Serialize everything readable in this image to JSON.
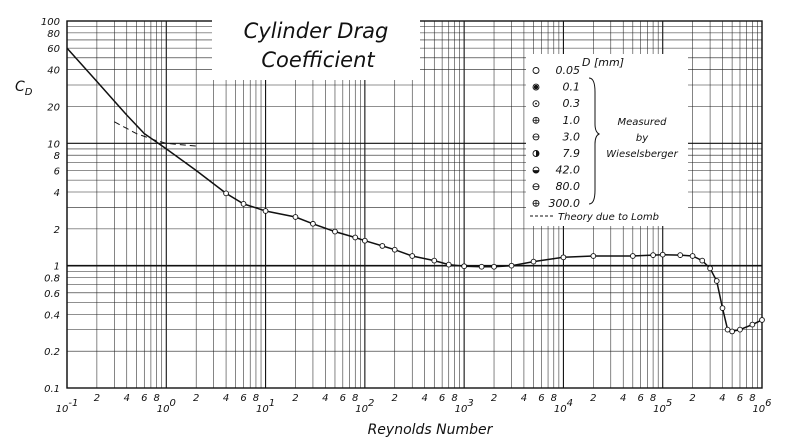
{
  "chart_data": {
    "type": "scatter",
    "title": "Cylinder Drag",
    "subtitle": "Coefficient",
    "xlabel": "Reynolds Number",
    "ylabel": "C",
    "ylabel_sub": "D",
    "x_scale": "log",
    "y_scale": "log",
    "xlim": [
      0.1,
      1000000
    ],
    "ylim": [
      0.1,
      100
    ],
    "grid": true,
    "legend_placement": "top-right",
    "x_major_ticks": [
      {
        "base": "10",
        "exp": "-1",
        "value": 0.1
      },
      {
        "base": "10",
        "exp": "0",
        "value": 1
      },
      {
        "base": "10",
        "exp": "1",
        "value": 10
      },
      {
        "base": "10",
        "exp": "2",
        "value": 100
      },
      {
        "base": "10",
        "exp": "3",
        "value": 1000
      },
      {
        "base": "10",
        "exp": "4",
        "value": 10000
      },
      {
        "base": "10",
        "exp": "5",
        "value": 100000
      },
      {
        "base": "10",
        "exp": "6",
        "value": 1000000
      }
    ],
    "x_minor_tick_labels": [
      "2",
      "4",
      "6",
      "8"
    ],
    "y_tick_labels": [
      {
        "label": "100",
        "value": 100
      },
      {
        "label": "80",
        "value": 80
      },
      {
        "label": "60",
        "value": 60
      },
      {
        "label": "40",
        "value": 40
      },
      {
        "label": "20",
        "value": 20
      },
      {
        "label": "10",
        "value": 10
      },
      {
        "label": "8",
        "value": 8
      },
      {
        "label": "6",
        "value": 6
      },
      {
        "label": "4",
        "value": 4
      },
      {
        "label": "2",
        "value": 2
      },
      {
        "label": "1",
        "value": 1
      },
      {
        "label": "0.8",
        "value": 0.8
      },
      {
        "label": "0.6",
        "value": 0.6
      },
      {
        "label": "0.4",
        "value": 0.4
      },
      {
        "label": "0.2",
        "value": 0.2
      },
      {
        "label": "0.1",
        "value": 0.1
      }
    ],
    "legend": {
      "header": "D [mm]",
      "entries": [
        "0.05",
        "0.1",
        "0.3",
        "1.0",
        "3.0",
        "7.9",
        "42.0",
        "80.0",
        "300.0"
      ],
      "group_label": [
        "Measured",
        "by",
        "Wieselsberger"
      ],
      "theory_label": "Theory due to  Lomb"
    },
    "series": [
      {
        "name": "Measured by Wieselsberger",
        "style": "markers+line",
        "x": [
          0.1,
          0.2,
          0.4,
          0.6,
          1,
          2,
          4,
          6,
          10,
          20,
          30,
          50,
          80,
          100,
          150,
          200,
          300,
          500,
          700,
          1000,
          1500,
          2000,
          3000,
          5000,
          10000,
          20000,
          50000,
          80000,
          100000,
          150000,
          200000,
          250000,
          300000,
          350000,
          400000,
          450000,
          500000,
          600000,
          800000,
          1000000
        ],
        "y": [
          60,
          32,
          17,
          12,
          9,
          6,
          3.9,
          3.2,
          2.8,
          2.5,
          2.2,
          1.9,
          1.7,
          1.6,
          1.45,
          1.35,
          1.2,
          1.1,
          1.02,
          0.99,
          0.98,
          0.98,
          1.0,
          1.08,
          1.17,
          1.2,
          1.2,
          1.22,
          1.23,
          1.22,
          1.2,
          1.1,
          0.95,
          0.75,
          0.45,
          0.3,
          0.29,
          0.3,
          0.33,
          0.36
        ]
      },
      {
        "name": "Theory due to  Lomb",
        "style": "dashed",
        "x": [
          0.3,
          0.5,
          0.8,
          1,
          2
        ],
        "y": [
          15,
          12,
          10.5,
          10,
          9.5
        ]
      }
    ]
  }
}
